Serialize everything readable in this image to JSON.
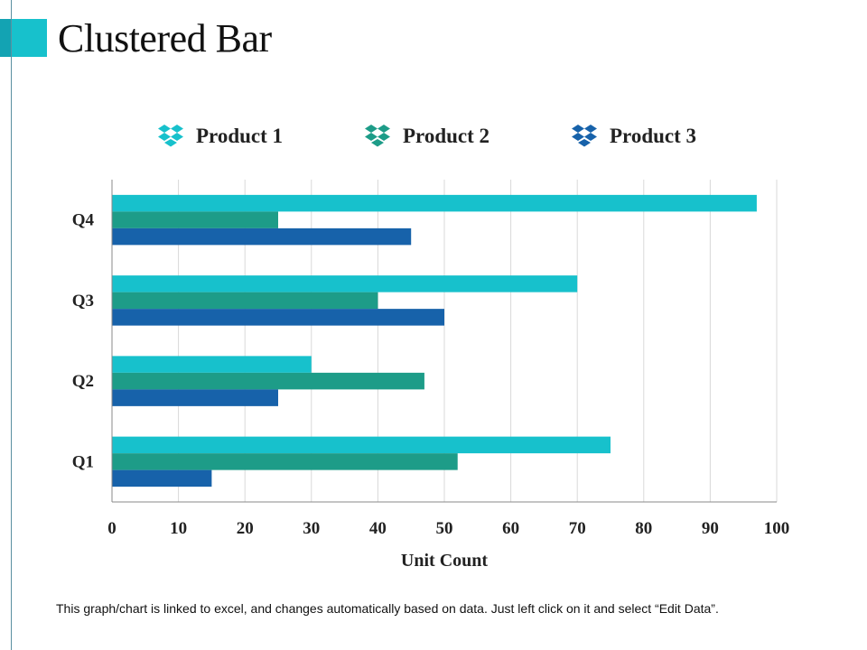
{
  "page": {
    "title": "Clustered Bar"
  },
  "colors": {
    "accent_light": "#17c1cc",
    "accent_dark": "#13a3b3"
  },
  "legend_icon": "dropbox-icon",
  "footnote": "This graph/chart is linked to excel, and changes automatically  based on data. Just left click on it and select “Edit Data”.",
  "chart_data": {
    "type": "bar",
    "orientation": "horizontal",
    "title": "Clustered Bar",
    "xlabel": "Unit Count",
    "ylabel": "",
    "xlim": [
      0,
      100
    ],
    "xticks": [
      "0",
      "10",
      "20",
      "30",
      "40",
      "50",
      "60",
      "70",
      "80",
      "90",
      "100"
    ],
    "categories": [
      "Q1",
      "Q2",
      "Q3",
      "Q4"
    ],
    "grid": true,
    "legend": "top",
    "series": [
      {
        "name": "Product 1",
        "color": "#17c1cc",
        "values": [
          75,
          30,
          70,
          97
        ]
      },
      {
        "name": "Product 2",
        "color": "#1d9c88",
        "values": [
          52,
          47,
          40,
          25
        ]
      },
      {
        "name": "Product 3",
        "color": "#1762aa",
        "values": [
          15,
          25,
          50,
          45
        ]
      }
    ]
  }
}
